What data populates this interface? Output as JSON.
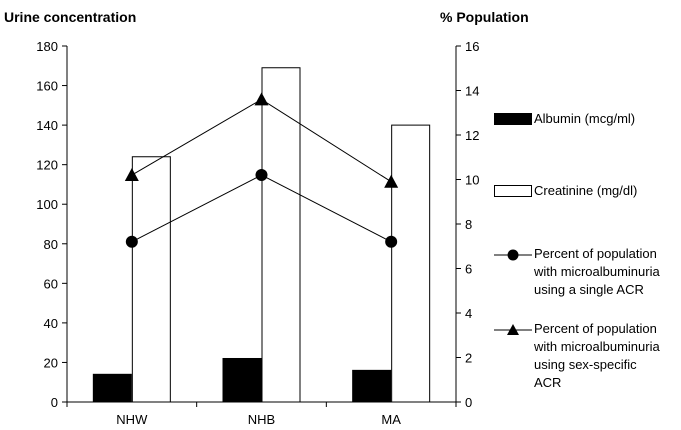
{
  "chart_data": {
    "type": "bar",
    "categories": [
      "NHW",
      "NHB",
      "MA"
    ],
    "left_axis": {
      "title": "Urine concentration",
      "ylim": [
        0,
        180
      ],
      "ticks": [
        0,
        20,
        40,
        60,
        80,
        100,
        120,
        140,
        160,
        180
      ]
    },
    "right_axis": {
      "title": "% Population",
      "ylim": [
        0,
        16
      ],
      "ticks": [
        0,
        2,
        4,
        6,
        8,
        10,
        12,
        14,
        16
      ]
    },
    "series": [
      {
        "name": "Albumin (mcg/ml)",
        "type": "bar",
        "axis": "left",
        "color": "#000000",
        "values": [
          14,
          22,
          16
        ]
      },
      {
        "name": "Creatinine (mg/dl)",
        "type": "bar",
        "axis": "left",
        "color": "#ffffff",
        "values": [
          124,
          169,
          140
        ]
      },
      {
        "name": "Percent of population with microalbuminuria using a single ACR",
        "type": "line",
        "marker": "circle",
        "axis": "right",
        "values": [
          7.2,
          10.2,
          7.2
        ]
      },
      {
        "name": "Percent of population with microalbuminuria using sex-specific ACR",
        "type": "line",
        "marker": "triangle",
        "axis": "right",
        "values": [
          10.2,
          13.6,
          9.9
        ]
      }
    ],
    "grid": false,
    "legend_position": "right"
  },
  "legend": [
    {
      "label": "Albumin (mcg/ml)"
    },
    {
      "label": "Creatinine (mg/dl)"
    },
    {
      "label": "Percent of population\nwith microalbuminuria\nusing a single ACR"
    },
    {
      "label": "Percent of population\nwith microalbuminuria\nusing sex-specific\nACR"
    }
  ]
}
